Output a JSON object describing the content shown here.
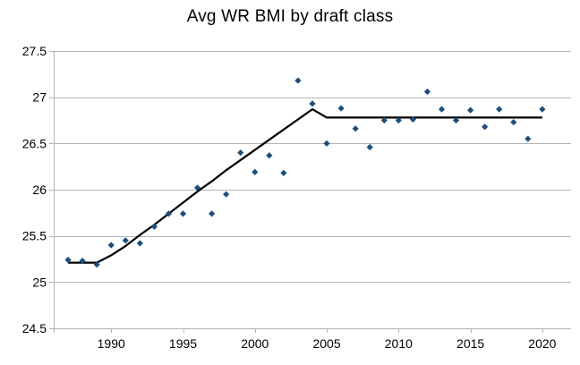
{
  "chart_data": {
    "type": "scatter",
    "title": "Avg WR BMI by draft class",
    "xlabel": "",
    "ylabel": "",
    "xlim": [
      1986,
      2022
    ],
    "ylim": [
      24.5,
      27.5
    ],
    "x_ticks": [
      1990,
      1995,
      2000,
      2005,
      2010,
      2015,
      2020
    ],
    "y_ticks": [
      24.5,
      25,
      25.5,
      26,
      26.5,
      27,
      27.5
    ],
    "y_tick_labels": [
      "24.5",
      "25",
      "25.5",
      "26",
      "26.5",
      "27",
      "27.5"
    ],
    "x_tick_labels": [
      "1990",
      "1995",
      "2000",
      "2005",
      "2010",
      "2015",
      "2020"
    ],
    "grid": "horizontal",
    "series": [
      {
        "type": "scatter",
        "marker": "diamond",
        "color": "#1f4e79",
        "x": [
          1987,
          1988,
          1989,
          1990,
          1991,
          1992,
          1993,
          1994,
          1995,
          1996,
          1997,
          1998,
          1999,
          2000,
          2001,
          2002,
          2003,
          2004,
          2005,
          2006,
          2007,
          2008,
          2009,
          2010,
          2011,
          2012,
          2013,
          2014,
          2015,
          2016,
          2017,
          2018,
          2019,
          2020
        ],
        "y": [
          25.24,
          25.23,
          25.19,
          25.4,
          25.45,
          25.42,
          25.6,
          25.74,
          25.74,
          26.02,
          25.74,
          25.95,
          26.4,
          26.19,
          26.37,
          26.18,
          27.18,
          26.93,
          26.5,
          26.88,
          26.66,
          26.46,
          26.75,
          26.75,
          26.76,
          27.06,
          26.87,
          26.75,
          26.86,
          26.68,
          26.87,
          26.73,
          26.55,
          26.87
        ]
      },
      {
        "type": "line",
        "color": "#000000",
        "x": [
          1987,
          1988,
          1989,
          1990,
          1991,
          1992,
          1993,
          1994,
          1995,
          1996,
          1997,
          1998,
          1999,
          2000,
          2001,
          2002,
          2003,
          2004,
          2005,
          2006,
          2007,
          2008,
          2009,
          2010,
          2011,
          2012,
          2013,
          2014,
          2015,
          2016,
          2017,
          2018,
          2019,
          2020
        ],
        "y": [
          25.21,
          25.21,
          25.21,
          25.29,
          25.39,
          25.51,
          25.62,
          25.74,
          25.86,
          25.98,
          26.09,
          26.21,
          26.32,
          26.43,
          26.54,
          26.65,
          26.76,
          26.87,
          26.78,
          26.78,
          26.78,
          26.78,
          26.78,
          26.78,
          26.78,
          26.78,
          26.78,
          26.78,
          26.78,
          26.78,
          26.78,
          26.78,
          26.78,
          26.78
        ]
      }
    ]
  }
}
